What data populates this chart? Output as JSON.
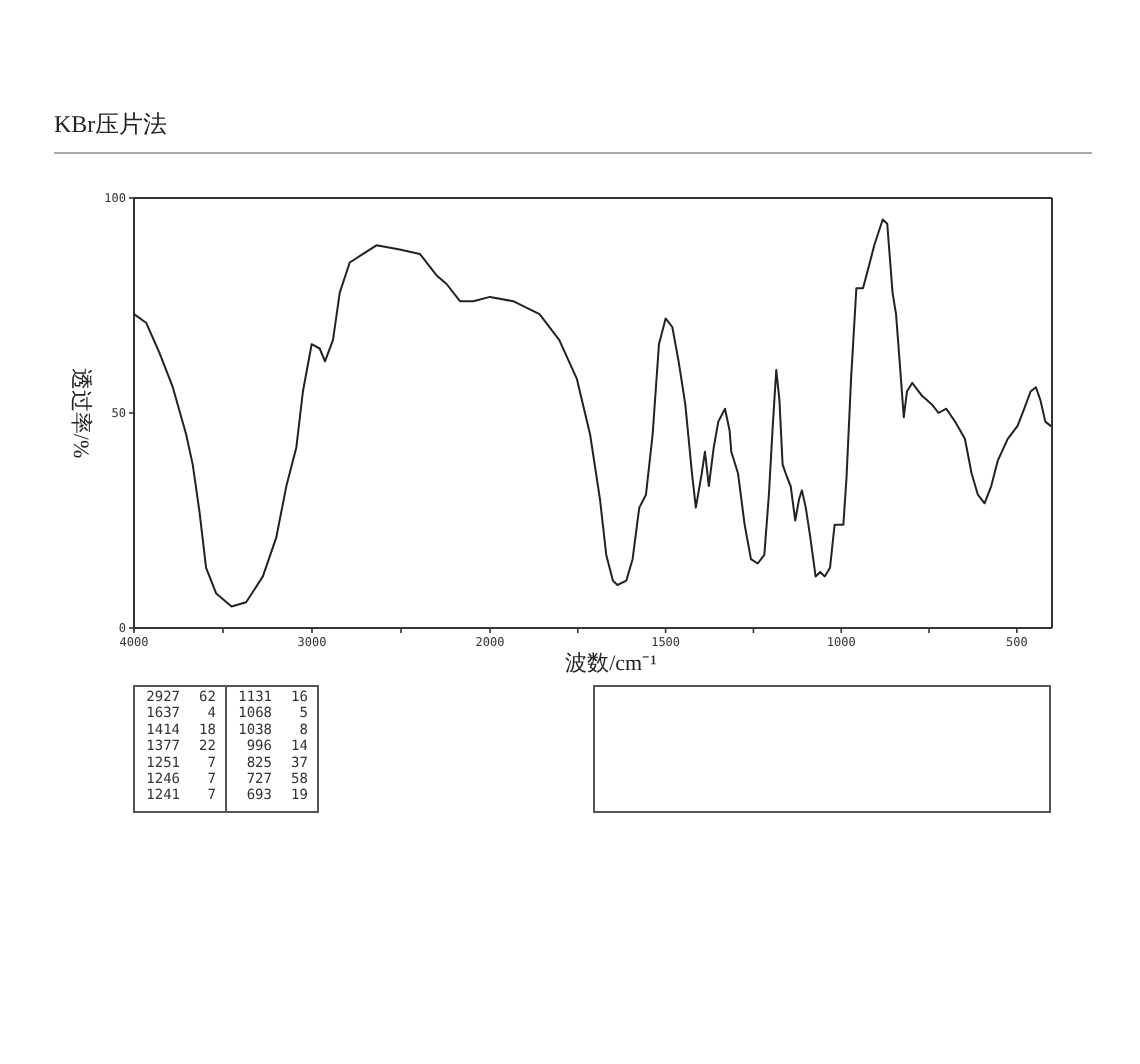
{
  "chart_data": [
    {
      "type": "line",
      "title": "KBr压片法",
      "ylabel": "透过率/%",
      "color": "#222222",
      "xlim": [
        4000,
        2000
      ],
      "xticks": [
        4000,
        {
          "value": 3500,
          "label": null
        },
        3000,
        {
          "value": 2500,
          "label": null
        },
        2000
      ],
      "ylim": [
        0,
        100
      ],
      "yticks": [
        0,
        50,
        100
      ],
      "x": [
        4000,
        3932,
        3857,
        3782,
        3707,
        3670,
        3632,
        3595,
        3538,
        3452,
        3370,
        3276,
        3201,
        3144,
        3088,
        3051,
        3002,
        2957,
        2927,
        2882,
        2844,
        2788,
        2713,
        2638,
        2507,
        2394,
        2300,
        2244,
        2169,
        2094,
        2000
      ],
      "values": [
        73,
        71,
        64,
        56,
        45,
        38,
        27,
        14,
        8,
        5,
        6,
        12,
        21,
        33,
        42,
        55,
        66,
        65,
        62,
        67,
        78,
        85,
        87,
        89,
        88,
        87,
        82,
        80,
        76,
        76,
        77
      ]
    },
    {
      "type": "line",
      "xlabel": "波数/cm⁻¹",
      "color": "#222222",
      "xlim": [
        2000,
        400
      ],
      "xticks": [
        {
          "value": 1750,
          "label": null
        },
        1500,
        {
          "value": 1250,
          "label": null
        },
        1000,
        {
          "value": 750,
          "label": null
        },
        500
      ],
      "ylim": [
        0,
        100
      ],
      "tick_labels": "x",
      "x": [
        2000,
        1934,
        1859,
        1803,
        1753,
        1715,
        1687,
        1669,
        1650,
        1637,
        1612,
        1594,
        1575,
        1556,
        1537,
        1519,
        1500,
        1481,
        1463,
        1444,
        1425,
        1414,
        1397,
        1388,
        1377,
        1363,
        1350,
        1331,
        1318,
        1313,
        1294,
        1275,
        1257,
        1238,
        1219,
        1206,
        1195,
        1185,
        1176,
        1167,
        1154,
        1144,
        1131,
        1120,
        1112,
        1101,
        1088,
        1073,
        1060,
        1047,
        1032,
        1019,
        1004,
        994,
        985,
        972,
        957,
        938,
        925,
        906,
        882,
        869,
        854,
        844,
        831,
        822,
        813,
        798,
        770,
        742,
        723,
        701,
        676,
        648,
        629,
        611,
        592,
        573,
        554,
        526,
        498,
        479,
        461,
        446,
        433,
        419,
        404
      ],
      "values": [
        77,
        76,
        73,
        67,
        58,
        45,
        30,
        17,
        11,
        10,
        11,
        16,
        28,
        31,
        45,
        66,
        72,
        70,
        62,
        52,
        36,
        28,
        36,
        41,
        33,
        42,
        48,
        51,
        46,
        41,
        36,
        24,
        16,
        15,
        17,
        31,
        47,
        60,
        53,
        38,
        35,
        33,
        25,
        30,
        32,
        28,
        21,
        12,
        13,
        12,
        14,
        24,
        24,
        24,
        35,
        58,
        79,
        79,
        83,
        89,
        95,
        94,
        78,
        73,
        59,
        49,
        55,
        57,
        54,
        52,
        50,
        51,
        48,
        44,
        36,
        31,
        29,
        33,
        39,
        44,
        47,
        51,
        55,
        56,
        53,
        48,
        47
      ]
    },
    {
      "type": "other",
      "annotations": [
        "2927 62",
        "1637 4",
        "1414 18",
        "1377 22",
        "1251 7",
        "1246 7",
        "1241 7",
        "1131 16",
        "1068 5",
        "1038 8",
        "996 14",
        "825 37",
        "727 58",
        "693 19"
      ]
    }
  ]
}
